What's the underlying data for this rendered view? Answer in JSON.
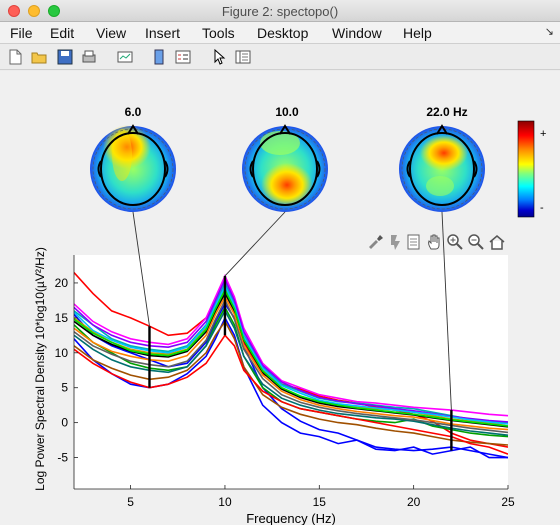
{
  "window": {
    "title": "Figure 2: spectopo()"
  },
  "menu": [
    "File",
    "Edit",
    "View",
    "Insert",
    "Tools",
    "Desktop",
    "Window",
    "Help"
  ],
  "toolbar_icons": [
    "new-figure-icon",
    "open-file-icon",
    "save-icon",
    "print-icon",
    "link-plot-icon",
    "colorbar-icon",
    "legend-icon",
    "pointer-icon",
    "property-inspector-icon"
  ],
  "axes_toolbar_icons": [
    "brush-icon",
    "data-cursor-icon",
    "export-icon",
    "pan-icon",
    "zoom-in-icon",
    "zoom-out-icon",
    "home-icon"
  ],
  "colorbar": {
    "plus_label": "+",
    "minus_label": "-",
    "colors": [
      "#8b0000",
      "#ff0000",
      "#ff8c00",
      "#ffff00",
      "#7fff7f",
      "#00ffff",
      "#0080ff",
      "#0000cd",
      "#00008b"
    ]
  },
  "chart_data": {
    "type": "line",
    "title": "",
    "xlabel": "Frequency (Hz)",
    "ylabel": "Log Power Spectral Density 10*log10(µV²/Hz)",
    "xlim": [
      2,
      25
    ],
    "ylim": [
      -9.5,
      24
    ],
    "xticks": [
      5,
      10,
      15,
      20,
      25
    ],
    "yticks": [
      20,
      15,
      10,
      5,
      0,
      -5
    ],
    "topo_labels": [
      "6.0",
      "10.0",
      "22.0 Hz"
    ],
    "topo_freqs": [
      6,
      10,
      22
    ],
    "grid": false,
    "x": [
      2,
      3,
      4,
      5,
      6,
      7,
      8,
      9,
      9.5,
      10,
      10.5,
      11,
      12,
      13,
      14,
      15,
      16,
      17,
      18,
      19,
      20,
      21,
      22,
      23,
      24,
      25
    ],
    "series": [
      {
        "color": "#ff0000",
        "values": [
          21.5,
          18.5,
          16,
          15,
          13.8,
          12.5,
          12.8,
          15,
          17,
          19.5,
          16,
          11.5,
          7,
          5.5,
          4.8,
          3.8,
          3.2,
          2.8,
          2.2,
          1.8,
          1.2,
          0.2,
          -1.5,
          -2.5,
          -3.0,
          -3.5
        ]
      },
      {
        "color": "#0000ff",
        "values": [
          15.5,
          12.5,
          11,
          10,
          9,
          8,
          8.5,
          11.5,
          14.5,
          17,
          15,
          11,
          5,
          2,
          0.2,
          -1,
          -1.5,
          -2.5,
          -3.5,
          -3.8,
          -4,
          -3.8,
          -3.5,
          -4,
          -4.5,
          -5
        ]
      },
      {
        "color": "#0000ff",
        "values": [
          12,
          9,
          7,
          5.5,
          5,
          5.5,
          7,
          9.5,
          12,
          15,
          12.5,
          8,
          2.5,
          0,
          -1.5,
          -2,
          -3,
          -2.5,
          -3.8,
          -4,
          -3.5,
          -4.5,
          -4,
          -3.5,
          -5,
          -5
        ]
      },
      {
        "color": "#00a000",
        "values": [
          14,
          11.5,
          10,
          8.5,
          7.8,
          7.5,
          8,
          11,
          14,
          16.5,
          14,
          9.5,
          5,
          3,
          2,
          1.5,
          1,
          0.5,
          0.2,
          0,
          0.5,
          -0.5,
          -1,
          -1.5,
          -1.8,
          -2
        ]
      },
      {
        "color": "#00b0b0",
        "values": [
          16,
          14,
          12,
          11,
          10.5,
          10.2,
          11,
          14,
          17,
          20,
          17,
          12.5,
          8,
          5.5,
          4.5,
          3.5,
          3,
          2.8,
          2.5,
          2.2,
          2,
          1.5,
          1,
          0.5,
          0.2,
          0
        ]
      },
      {
        "color": "#ff00ff",
        "values": [
          17,
          14.5,
          13,
          12,
          11.5,
          11.2,
          12,
          15,
          18,
          21,
          18,
          13.5,
          8.5,
          6,
          5,
          4,
          3.5,
          3,
          2.8,
          2.5,
          2.2,
          2,
          1.8,
          1.5,
          1.2,
          1
        ]
      },
      {
        "color": "#c0a000",
        "values": [
          15,
          13,
          11.5,
          10.5,
          10,
          9.8,
          10.5,
          13.5,
          16.5,
          19,
          16.5,
          12,
          7.5,
          5,
          3.8,
          3,
          2.5,
          2.2,
          2,
          1.8,
          1.5,
          1,
          0.5,
          0.2,
          0,
          -0.5
        ]
      },
      {
        "color": "#000000",
        "values": [
          14.5,
          12.5,
          11.2,
          10.2,
          9.6,
          9.4,
          10.2,
          13,
          16,
          18.5,
          16,
          11.8,
          7.2,
          4.8,
          3.6,
          2.8,
          2.3,
          2,
          1.7,
          1.4,
          1.1,
          0.7,
          0.3,
          0,
          -0.3,
          -0.6
        ]
      },
      {
        "color": "#ff8000",
        "values": [
          13.5,
          11.5,
          10.2,
          9.5,
          9,
          8.8,
          9.6,
          12.5,
          15.5,
          18,
          15.5,
          11,
          6.8,
          4.5,
          3.3,
          2.5,
          2,
          1.6,
          1.3,
          1,
          0.8,
          0.3,
          -0.2,
          -0.5,
          -0.8,
          -1
        ]
      },
      {
        "color": "#8000ff",
        "values": [
          16.5,
          14,
          12.5,
          11.5,
          11,
          10.8,
          11.5,
          14.5,
          17.5,
          20.5,
          17.5,
          13,
          8.2,
          5.8,
          4.6,
          3.6,
          3.1,
          2.7,
          2.4,
          2,
          1.7,
          1.3,
          0.9,
          0.6,
          0.3,
          0.1
        ]
      },
      {
        "color": "#007070",
        "values": [
          12.5,
          10.5,
          9,
          8,
          7.5,
          7.2,
          8,
          11,
          13.5,
          16,
          13.5,
          9.5,
          5.5,
          3.5,
          2.5,
          1.8,
          1.3,
          1,
          0.7,
          0.5,
          0.2,
          -0.3,
          -0.8,
          -1.2,
          -1.5,
          -1.8
        ]
      },
      {
        "color": "#a05000",
        "values": [
          11,
          9,
          7.8,
          6.8,
          6.2,
          6.5,
          7.5,
          10,
          12.5,
          14.5,
          12,
          8,
          4,
          2.2,
          1.2,
          0.5,
          0,
          -0.3,
          -0.8,
          -1.2,
          -1.5,
          -2,
          -2.5,
          -2.8,
          -3,
          -3.2
        ]
      },
      {
        "color": "#ff0000",
        "values": [
          10.5,
          8.5,
          7,
          5.8,
          5,
          5.5,
          6.5,
          8.5,
          10.5,
          12.5,
          11,
          7.5,
          4.5,
          3,
          2,
          1.5,
          1,
          0.5,
          0,
          -0.5,
          -1,
          -1.5,
          -2,
          -3,
          -3.5,
          -4.5
        ]
      },
      {
        "color": "#00c0ff",
        "values": [
          15.8,
          13.2,
          11.8,
          10.8,
          10.3,
          10,
          10.8,
          13.8,
          16.8,
          19.5,
          16.8,
          12.3,
          7.8,
          5.3,
          4.2,
          3.2,
          2.7,
          2.4,
          2.1,
          1.8,
          1.5,
          1.2,
          0.8,
          0.4,
          0.1,
          -0.2
        ]
      },
      {
        "color": "#606060",
        "values": [
          13,
          11,
          9.8,
          8.8,
          8.3,
          8,
          8.8,
          11.8,
          14.8,
          17.5,
          14.8,
          10.5,
          6.3,
          4,
          2.9,
          2.2,
          1.7,
          1.3,
          1,
          0.7,
          0.4,
          0,
          -0.4,
          -0.8,
          -1.1,
          -1.4
        ]
      },
      {
        "color": "#00e000",
        "values": [
          14.8,
          12.8,
          11.5,
          10.3,
          9.8,
          9.6,
          10.4,
          13.3,
          16.3,
          19,
          16.3,
          11.9,
          7.4,
          5,
          3.8,
          3,
          2.5,
          2.1,
          1.8,
          1.5,
          1.2,
          0.8,
          0.4,
          0.1,
          -0.2,
          -0.5
        ]
      }
    ]
  }
}
